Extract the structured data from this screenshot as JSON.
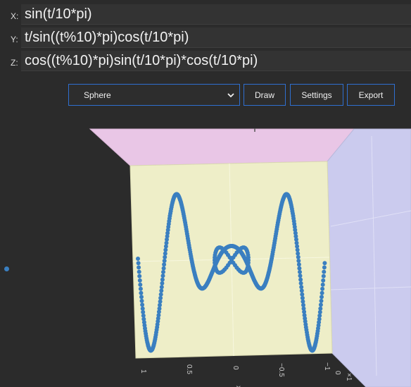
{
  "equations": {
    "x": {
      "label": "X:",
      "value": "sin(t/10*pi)"
    },
    "y": {
      "label": "Y:",
      "value": "t/sin((t%10)*pi)cos(t/10*pi)"
    },
    "z": {
      "label": "Z:",
      "value": "cos((t%10)*pi)sin(t/10*pi)*cos(t/10*pi)"
    }
  },
  "toolbar": {
    "shape_select": "Sphere",
    "draw_label": "Draw",
    "settings_label": "Settings",
    "export_label": "Export"
  },
  "plot": {
    "axis_ticks": [
      "1",
      "0.5",
      "0",
      "−0.5",
      "−1",
      "0",
      "×1"
    ],
    "axis_label": "x",
    "colors": {
      "point": "#3a7fc0",
      "back_wall": "#eeeec8",
      "top_wall": "#e9c6e6",
      "right_wall": "#cbcbee",
      "background": "#2b2b2b"
    }
  },
  "icons": {
    "dropdown": "chevron-down-icon",
    "side_marker": "dot-icon"
  }
}
